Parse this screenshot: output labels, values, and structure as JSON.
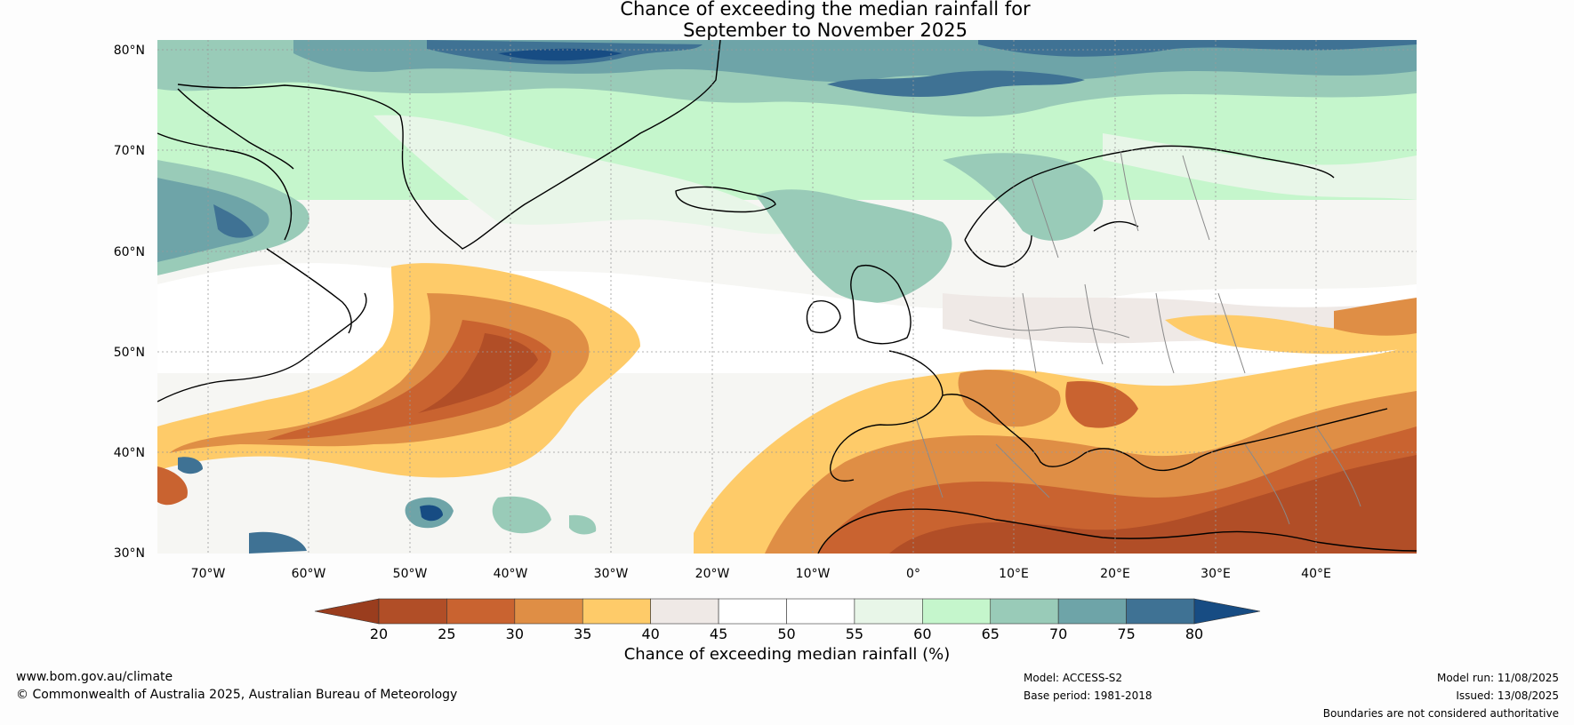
{
  "title": {
    "line1": "Chance of exceeding the median rainfall for",
    "line2": "September to November 2025"
  },
  "map": {
    "lat_ticks": [
      "80°N",
      "70°N",
      "60°N",
      "50°N",
      "40°N",
      "30°N"
    ],
    "lon_ticks": [
      "70°W",
      "60°W",
      "50°W",
      "40°W",
      "30°W",
      "20°W",
      "10°W",
      "0°",
      "10°E",
      "20°E",
      "30°E",
      "40°E"
    ],
    "lat_range": [
      30,
      81
    ],
    "lon_range": [
      -75,
      50
    ]
  },
  "legend": {
    "title": "Chance of exceeding median rainfall (%)",
    "ticks": [
      "20",
      "25",
      "30",
      "35",
      "40",
      "45",
      "50",
      "55",
      "60",
      "65",
      "70",
      "75",
      "80"
    ],
    "colors": [
      "#9a3d1e",
      "#b14e27",
      "#c96330",
      "#df8e45",
      "#fecb69",
      "#efe9e6",
      "#ffffff",
      "#ffffff",
      "#e8f6e8",
      "#c5f6cc",
      "#99cbb8",
      "#6ea4a8",
      "#3f7294",
      "#174c83"
    ]
  },
  "footer": {
    "website": "www.bom.gov.au/climate",
    "copyright": "© Commonwealth of Australia 2025, Australian Bureau of Meteorology",
    "model": "Model: ACCESS-S2",
    "base_period": "Base period: 1981-2018",
    "model_run": "Model run: 11/08/2025",
    "issued": "Issued: 13/08/2025",
    "boundaries": "Boundaries are not considered authoritative"
  }
}
